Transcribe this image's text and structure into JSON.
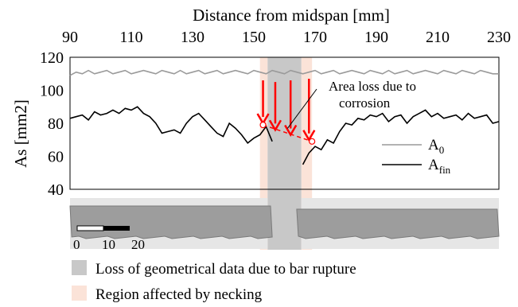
{
  "chart_data": {
    "type": "line",
    "top_axis_label": "Distance from midspan [mm]",
    "ylabel": "As [mm2]",
    "xlim": [
      90,
      230
    ],
    "ylim": [
      40,
      120
    ],
    "x_ticks": [
      "90",
      "110",
      "130",
      "150",
      "170",
      "190",
      "210",
      "230"
    ],
    "y_ticks": [
      "120",
      "100",
      "80",
      "60",
      "40"
    ],
    "series": [
      {
        "name": "A0",
        "legend_main": "A",
        "legend_sub": "0",
        "color": "#9a9a9a",
        "x": [
          90,
          92,
          94,
          96,
          98,
          100,
          102,
          104,
          106,
          108,
          110,
          112,
          114,
          116,
          118,
          120,
          122,
          124,
          126,
          128,
          130,
          132,
          134,
          136,
          138,
          140,
          142,
          144,
          146,
          148,
          150,
          152,
          154,
          156,
          158,
          160,
          162,
          164,
          166,
          168,
          170,
          172,
          174,
          176,
          178,
          180,
          182,
          184,
          186,
          188,
          190,
          192,
          194,
          196,
          198,
          200,
          202,
          204,
          206,
          208,
          210,
          212,
          214,
          216,
          218,
          220,
          222,
          224,
          226,
          228,
          230
        ],
        "y": [
          109,
          111,
          110,
          112,
          110,
          111,
          112,
          110,
          111,
          112,
          110,
          111,
          112,
          111,
          110,
          112,
          111,
          110,
          112,
          110,
          111,
          112,
          110,
          111,
          112,
          110,
          111,
          112,
          111,
          110,
          112,
          111,
          110,
          112,
          111,
          110,
          112,
          111,
          110,
          111,
          112,
          110,
          111,
          112,
          110,
          111,
          112,
          111,
          110,
          112,
          111,
          110,
          112,
          110,
          111,
          112,
          110,
          111,
          112,
          111,
          110,
          112,
          111,
          110,
          112,
          111,
          110,
          112,
          111,
          110,
          110
        ]
      },
      {
        "name": "Afin",
        "legend_main": "A",
        "legend_sub": "fin",
        "color": "#000000",
        "segments": [
          {
            "x": [
              90,
              92,
              94,
              96,
              98,
              100,
              102,
              104,
              106,
              108,
              110,
              112,
              114,
              116,
              118,
              120,
              122,
              124,
              126,
              128,
              130,
              132,
              134,
              136,
              138,
              140,
              142,
              144,
              146,
              148,
              150,
              152,
              154,
              156
            ],
            "y": [
              83,
              84,
              85,
              82,
              87,
              85,
              86,
              88,
              86,
              89,
              88,
              90,
              86,
              84,
              80,
              74,
              75,
              76,
              74,
              80,
              84,
              86,
              82,
              78,
              74,
              72,
              80,
              77,
              73,
              68,
              71,
              73,
              78,
              69
            ]
          },
          {
            "x": [
              166,
              168,
              170,
              172,
              174,
              176,
              178,
              180,
              182,
              184,
              186,
              188,
              190,
              192,
              194,
              196,
              198,
              200,
              202,
              204,
              206,
              208,
              210,
              212,
              214,
              216,
              218,
              220,
              222,
              224,
              226,
              228,
              230
            ],
            "y": [
              55,
              62,
              66,
              64,
              70,
              68,
              75,
              80,
              79,
              83,
              82,
              85,
              84,
              86,
              81,
              84,
              85,
              80,
              84,
              86,
              88,
              84,
              86,
              83,
              84,
              85,
              82,
              86,
              83,
              84,
              85,
              80,
              81
            ]
          }
        ]
      }
    ],
    "necking_points": [
      {
        "x": 153,
        "y": 79
      },
      {
        "x": 169,
        "y": 69
      }
    ],
    "arrows": [
      {
        "x": 153,
        "y_top": 106,
        "y_bottom": 80
      },
      {
        "x": 157,
        "y_top": 105,
        "y_bottom": 76
      },
      {
        "x": 162,
        "y_top": 106,
        "y_bottom": 73
      },
      {
        "x": 168,
        "y_top": 107,
        "y_bottom": 70
      }
    ],
    "annotation": {
      "line1": "Area loss due to",
      "line2": "corrosion",
      "points_to": {
        "x": 161,
        "y": 74
      }
    },
    "rupture_region": [
      154.5,
      165.5
    ],
    "necking_regions": [
      [
        152,
        154.5
      ],
      [
        165.5,
        169
      ]
    ],
    "scale_bar": {
      "labels": [
        "0",
        "10",
        "20"
      ]
    },
    "legend_items": [
      {
        "label": "Loss of geometrical data due to bar rupture",
        "color": "#c8c8c8"
      },
      {
        "label": "Region affected by necking",
        "color": "#fbe3d8"
      }
    ],
    "colors": {
      "arrow": "#ff0000",
      "dashed_loss": "#ff0000",
      "rupture_band": "#c8c8c8",
      "necking_band": "#fbe3d8",
      "bar_background": "#e6e6e6",
      "bar_fill": "#9d9d9d"
    }
  }
}
